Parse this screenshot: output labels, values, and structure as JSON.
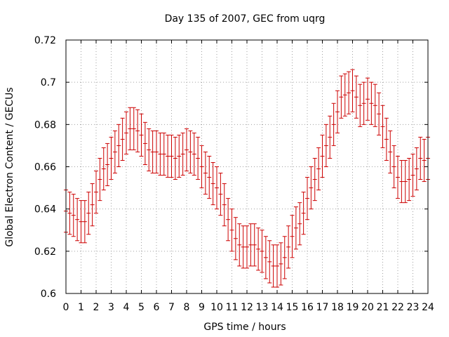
{
  "chart_data": {
    "type": "scatter",
    "title": "Day 135 of 2007, GEC from uqrg",
    "xlabel": "GPS time / hours",
    "ylabel": "Global Electron Content / GECUs",
    "xlim": [
      0,
      24
    ],
    "ylim": [
      0.6,
      0.72
    ],
    "xticks": [
      "0",
      "1",
      "2",
      "3",
      "4",
      "5",
      "6",
      "7",
      "8",
      "9",
      "10",
      "11",
      "12",
      "13",
      "14",
      "15",
      "16",
      "17",
      "18",
      "19",
      "20",
      "21",
      "22",
      "23",
      "24"
    ],
    "yticks": [
      "0.6",
      "0.62",
      "0.64",
      "0.66",
      "0.68",
      "0.7",
      "0.72"
    ],
    "grid": true,
    "colors": {
      "series": "#cc0000",
      "grid": "#a0a0a0",
      "axis": "#000000"
    },
    "series": [
      {
        "error_bar": 0.01,
        "points": [
          [
            0.0,
            0.639
          ],
          [
            0.25,
            0.638
          ],
          [
            0.5,
            0.637
          ],
          [
            0.75,
            0.635
          ],
          [
            1.0,
            0.634
          ],
          [
            1.25,
            0.634
          ],
          [
            1.5,
            0.638
          ],
          [
            1.75,
            0.642
          ],
          [
            2.0,
            0.648
          ],
          [
            2.25,
            0.654
          ],
          [
            2.5,
            0.659
          ],
          [
            2.75,
            0.661
          ],
          [
            3.0,
            0.664
          ],
          [
            3.25,
            0.667
          ],
          [
            3.5,
            0.67
          ],
          [
            3.75,
            0.673
          ],
          [
            4.0,
            0.676
          ],
          [
            4.25,
            0.678
          ],
          [
            4.5,
            0.678
          ],
          [
            4.75,
            0.677
          ],
          [
            5.0,
            0.675
          ],
          [
            5.25,
            0.671
          ],
          [
            5.5,
            0.668
          ],
          [
            5.75,
            0.667
          ],
          [
            6.0,
            0.667
          ],
          [
            6.25,
            0.666
          ],
          [
            6.5,
            0.666
          ],
          [
            6.75,
            0.665
          ],
          [
            7.0,
            0.665
          ],
          [
            7.25,
            0.664
          ],
          [
            7.5,
            0.665
          ],
          [
            7.75,
            0.666
          ],
          [
            8.0,
            0.668
          ],
          [
            8.25,
            0.667
          ],
          [
            8.5,
            0.666
          ],
          [
            8.75,
            0.664
          ],
          [
            9.0,
            0.66
          ],
          [
            9.25,
            0.657
          ],
          [
            9.5,
            0.655
          ],
          [
            9.75,
            0.652
          ],
          [
            10.0,
            0.65
          ],
          [
            10.25,
            0.647
          ],
          [
            10.5,
            0.642
          ],
          [
            10.75,
            0.635
          ],
          [
            11.0,
            0.63
          ],
          [
            11.25,
            0.626
          ],
          [
            11.5,
            0.623
          ],
          [
            11.75,
            0.622
          ],
          [
            12.0,
            0.622
          ],
          [
            12.25,
            0.623
          ],
          [
            12.5,
            0.623
          ],
          [
            12.75,
            0.621
          ],
          [
            13.0,
            0.62
          ],
          [
            13.25,
            0.617
          ],
          [
            13.5,
            0.615
          ],
          [
            13.75,
            0.613
          ],
          [
            14.0,
            0.613
          ],
          [
            14.25,
            0.614
          ],
          [
            14.5,
            0.617
          ],
          [
            14.75,
            0.622
          ],
          [
            15.0,
            0.627
          ],
          [
            15.25,
            0.631
          ],
          [
            15.5,
            0.633
          ],
          [
            15.75,
            0.638
          ],
          [
            16.0,
            0.645
          ],
          [
            16.25,
            0.65
          ],
          [
            16.5,
            0.654
          ],
          [
            16.75,
            0.659
          ],
          [
            17.0,
            0.665
          ],
          [
            17.25,
            0.67
          ],
          [
            17.5,
            0.674
          ],
          [
            17.75,
            0.68
          ],
          [
            18.0,
            0.686
          ],
          [
            18.25,
            0.693
          ],
          [
            18.5,
            0.694
          ],
          [
            18.75,
            0.695
          ],
          [
            19.0,
            0.696
          ],
          [
            19.25,
            0.693
          ],
          [
            19.5,
            0.689
          ],
          [
            19.75,
            0.69
          ],
          [
            20.0,
            0.692
          ],
          [
            20.25,
            0.69
          ],
          [
            20.5,
            0.689
          ],
          [
            20.75,
            0.685
          ],
          [
            21.0,
            0.679
          ],
          [
            21.25,
            0.673
          ],
          [
            21.5,
            0.667
          ],
          [
            21.75,
            0.66
          ],
          [
            22.0,
            0.655
          ],
          [
            22.25,
            0.653
          ],
          [
            22.5,
            0.653
          ],
          [
            22.75,
            0.654
          ],
          [
            23.0,
            0.656
          ],
          [
            23.25,
            0.659
          ],
          [
            23.5,
            0.664
          ],
          [
            23.75,
            0.663
          ],
          [
            24.0,
            0.664
          ]
        ]
      }
    ]
  }
}
